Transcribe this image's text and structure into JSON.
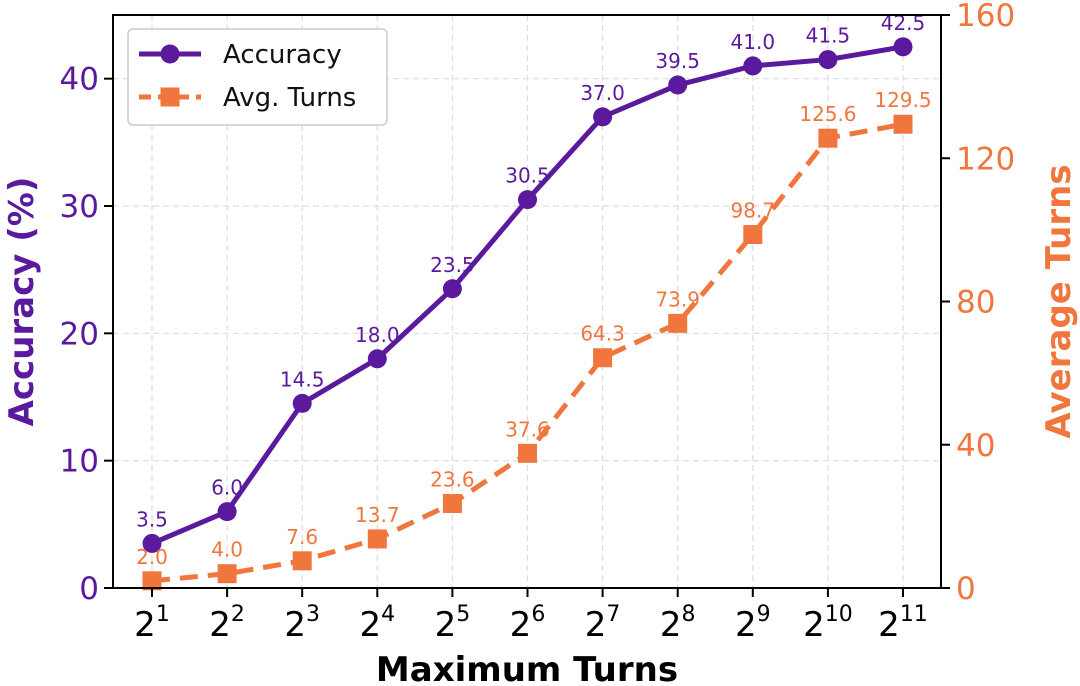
{
  "chart_data": {
    "type": "line",
    "xlabel": "Maximum Turns",
    "x": [
      {
        "base": "2",
        "exp": "1"
      },
      {
        "base": "2",
        "exp": "2"
      },
      {
        "base": "2",
        "exp": "3"
      },
      {
        "base": "2",
        "exp": "4"
      },
      {
        "base": "2",
        "exp": "5"
      },
      {
        "base": "2",
        "exp": "6"
      },
      {
        "base": "2",
        "exp": "7"
      },
      {
        "base": "2",
        "exp": "8"
      },
      {
        "base": "2",
        "exp": "9"
      },
      {
        "base": "2",
        "exp": "10"
      },
      {
        "base": "2",
        "exp": "11"
      }
    ],
    "y_left": {
      "label": "Accuracy (%)",
      "lim": [
        0,
        45
      ],
      "ticks": [
        0,
        10,
        20,
        30,
        40
      ]
    },
    "y_right": {
      "label": "Average Turns",
      "lim": [
        0,
        160
      ],
      "ticks": [
        0,
        40,
        80,
        120,
        160
      ]
    },
    "series": [
      {
        "name": "Accuracy",
        "axis": "left",
        "color": "#5b1a9e",
        "marker": "circle",
        "linestyle": "solid",
        "values": [
          3.5,
          6.0,
          14.5,
          18.0,
          23.5,
          30.5,
          37.0,
          39.5,
          41.0,
          41.5,
          42.5
        ],
        "labels": [
          "3.5",
          "6.0",
          "14.5",
          "18.0",
          "23.5",
          "30.5",
          "37.0",
          "39.5",
          "41.0",
          "41.5",
          "42.5"
        ]
      },
      {
        "name": "Avg. Turns",
        "axis": "right",
        "color": "#f0763d",
        "marker": "square",
        "linestyle": "dashed",
        "values": [
          2.0,
          4.0,
          7.6,
          13.7,
          23.6,
          37.6,
          64.3,
          73.9,
          98.7,
          125.6,
          129.5
        ],
        "labels": [
          "2.0",
          "4.0",
          "7.6",
          "13.7",
          "23.6",
          "37.6",
          "64.3",
          "73.9",
          "98.7",
          "125.6",
          "129.5"
        ]
      }
    ],
    "grid": true,
    "legend": "top-left"
  }
}
